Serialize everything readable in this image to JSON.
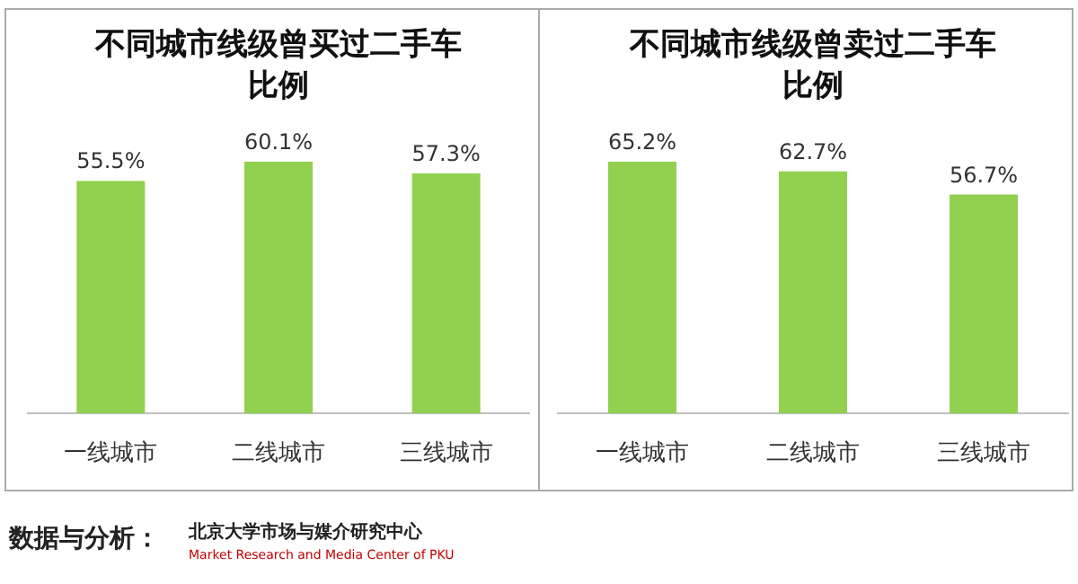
{
  "chart_data": [
    {
      "type": "bar",
      "title": "不同城市线级曾买过二手车比例",
      "categories": [
        "一线城市",
        "二线城市",
        "三线城市"
      ],
      "color": "#92d050",
      "values": [
        55.5,
        60.1,
        57.3
      ],
      "value_labels": [
        "55.5%",
        "60.1%",
        "57.3%"
      ],
      "tick_labels": "x",
      "annotations": [
        "数据与分析：",
        "北京大学市场与媒介研究中心",
        "Market Research and Media Center of PKU"
      ]
    },
    {
      "type": "bar",
      "title": "不同城市线级曾卖过二手车比例",
      "categories": [
        "一线城市",
        "二线城市",
        "三线城市"
      ],
      "color": "#92d050",
      "values": [
        65.2,
        62.7,
        56.7
      ],
      "value_labels": [
        "65.2%",
        "62.7%",
        "56.7%"
      ],
      "tick_labels": "x"
    }
  ]
}
